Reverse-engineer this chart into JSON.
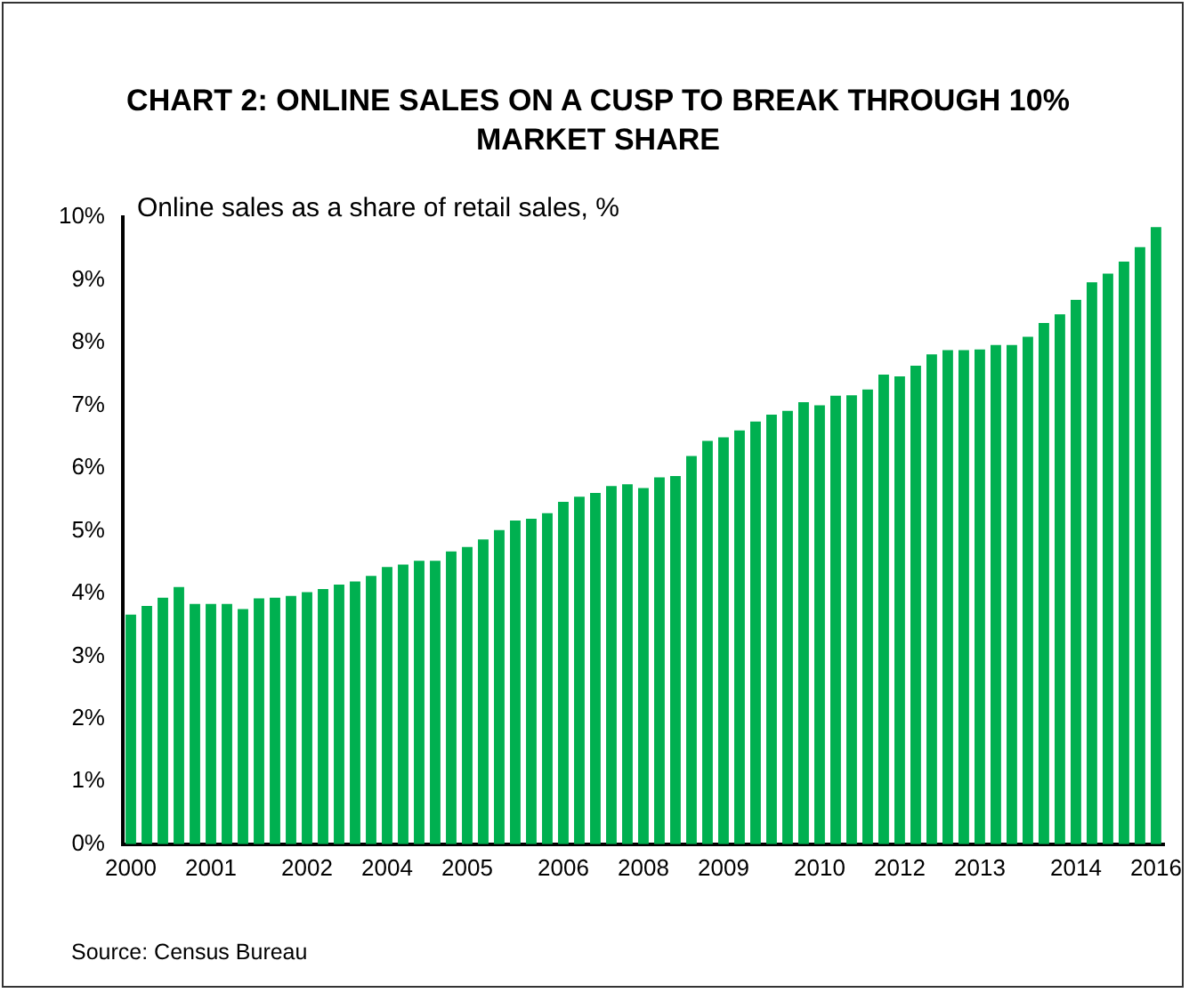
{
  "chart_data": {
    "type": "bar",
    "title": "CHART 2: ONLINE SALES ON A CUSP TO BREAK THROUGH 10% MARKET SHARE",
    "ylabel": "Online sales as a share of retail sales, %",
    "categories": [
      "2000",
      null,
      null,
      null,
      null,
      "2001",
      null,
      null,
      null,
      null,
      null,
      "2002",
      null,
      null,
      null,
      null,
      "2004",
      null,
      null,
      null,
      null,
      "2005",
      null,
      null,
      null,
      null,
      null,
      "2006",
      null,
      null,
      null,
      null,
      "2008",
      null,
      null,
      null,
      null,
      "2009",
      null,
      null,
      null,
      null,
      null,
      "2010",
      null,
      null,
      null,
      null,
      "2012",
      null,
      null,
      null,
      null,
      "2013",
      null,
      null,
      null,
      null,
      null,
      "2014",
      null,
      null,
      null,
      null,
      "2016"
    ],
    "values": [
      3.66,
      3.8,
      3.93,
      4.1,
      3.83,
      3.83,
      3.83,
      3.75,
      3.92,
      3.93,
      3.96,
      4.02,
      4.07,
      4.14,
      4.19,
      4.28,
      4.42,
      4.46,
      4.52,
      4.52,
      4.67,
      4.74,
      4.86,
      5.01,
      5.16,
      5.19,
      5.28,
      5.46,
      5.54,
      5.6,
      5.71,
      5.74,
      5.68,
      5.85,
      5.87,
      6.19,
      6.43,
      6.49,
      6.6,
      6.74,
      6.85,
      6.91,
      7.05,
      7.0,
      7.15,
      7.16,
      7.25,
      7.49,
      7.46,
      7.63,
      7.81,
      7.88,
      7.88,
      7.89,
      7.96,
      7.96,
      8.09,
      8.31,
      8.45,
      8.68,
      8.96,
      9.1,
      9.29,
      9.52,
      9.84
    ],
    "color": "#00b050",
    "ylim": [
      0,
      10
    ],
    "yticks": [
      {
        "value": 0,
        "label": "0%"
      },
      {
        "value": 1,
        "label": "1%"
      },
      {
        "value": 2,
        "label": "2%"
      },
      {
        "value": 3,
        "label": "3%"
      },
      {
        "value": 4,
        "label": "4%"
      },
      {
        "value": 5,
        "label": "5%"
      },
      {
        "value": 6,
        "label": "6%"
      },
      {
        "value": 7,
        "label": "7%"
      },
      {
        "value": 8,
        "label": "8%"
      },
      {
        "value": 9,
        "label": "9%"
      },
      {
        "value": 10,
        "label": "10%"
      }
    ],
    "grid": false,
    "legend": false,
    "annotations": [
      "Source: Census Bureau"
    ]
  }
}
